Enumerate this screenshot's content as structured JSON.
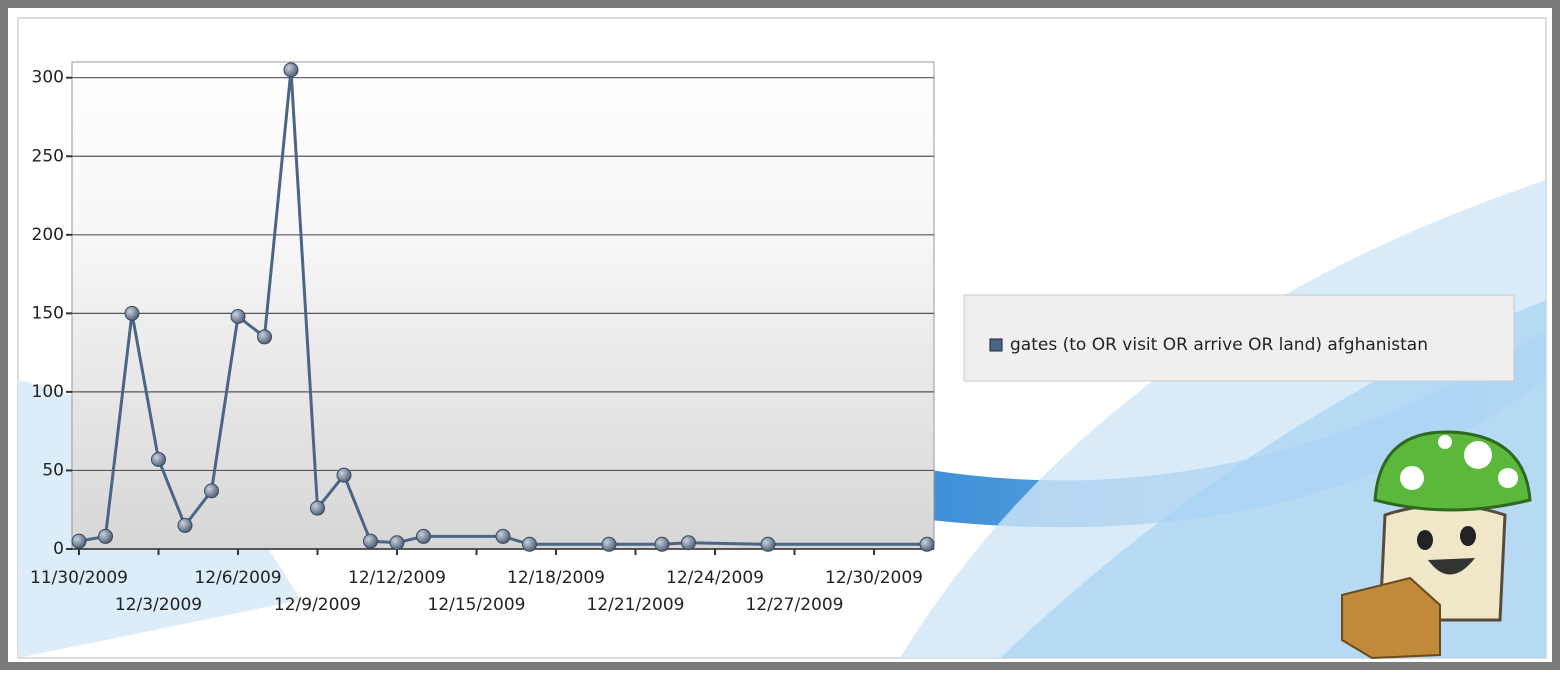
{
  "chart_data": {
    "type": "line",
    "x": [
      "2009-11-30",
      "2009-12-01",
      "2009-12-02",
      "2009-12-03",
      "2009-12-04",
      "2009-12-05",
      "2009-12-06",
      "2009-12-07",
      "2009-12-08",
      "2009-12-09",
      "2009-12-10",
      "2009-12-11",
      "2009-12-12",
      "2009-12-13",
      "2009-12-16",
      "2009-12-17",
      "2009-12-20",
      "2009-12-22",
      "2009-12-23",
      "2009-12-26",
      "2010-01-01"
    ],
    "series": [
      {
        "name": "gates (to OR visit OR arrive OR land) afghanistan",
        "color": "#4a6585",
        "values": [
          5,
          8,
          150,
          57,
          15,
          37,
          148,
          135,
          305,
          26,
          47,
          5,
          4,
          8,
          8,
          3,
          3,
          3,
          4,
          3,
          3
        ]
      }
    ],
    "xlim": [
      "2009-11-30",
      "2010-01-01"
    ],
    "xticks": [
      {
        "value": "2009-11-30",
        "label": "11/30/2009"
      },
      {
        "value": "2009-12-03",
        "label": "12/3/2009"
      },
      {
        "value": "2009-12-06",
        "label": "12/6/2009"
      },
      {
        "value": "2009-12-09",
        "label": "12/9/2009"
      },
      {
        "value": "2009-12-12",
        "label": "12/12/2009"
      },
      {
        "value": "2009-12-15",
        "label": "12/15/2009"
      },
      {
        "value": "2009-12-18",
        "label": "12/18/2009"
      },
      {
        "value": "2009-12-21",
        "label": "12/21/2009"
      },
      {
        "value": "2009-12-24",
        "label": "12/24/2009"
      },
      {
        "value": "2009-12-27",
        "label": "12/27/2009"
      },
      {
        "value": "2009-12-30",
        "label": "12/30/2009"
      }
    ],
    "ylim": [
      0,
      310
    ],
    "yticks": [
      0,
      50,
      100,
      150,
      200,
      250,
      300
    ],
    "grid": true,
    "legend": "right"
  }
}
